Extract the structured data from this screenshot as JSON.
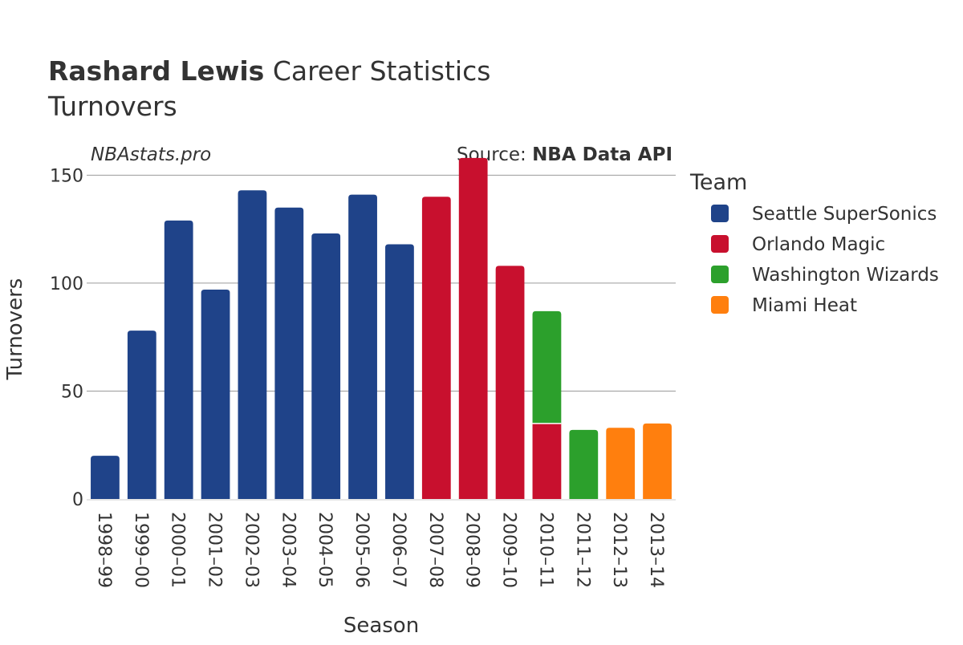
{
  "header": {
    "title_bold": "Rashard Lewis",
    "title_rest": " Career Statistics",
    "subtitle": "Turnovers",
    "watermark": "NBAstats.pro",
    "source_prefix": "Source: ",
    "source_bold": "NBA Data API"
  },
  "legend": {
    "title": "Team",
    "items": [
      {
        "name": "Seattle SuperSonics",
        "color": "#1f4389"
      },
      {
        "name": "Orlando Magic",
        "color": "#c8102e"
      },
      {
        "name": "Washington Wizards",
        "color": "#2ca02c"
      },
      {
        "name": "Miami Heat",
        "color": "#ff7f0e"
      }
    ]
  },
  "chart_data": {
    "type": "bar",
    "stacked": true,
    "title": "Rashard Lewis Career Statistics",
    "subtitle": "Turnovers",
    "xlabel": "Season",
    "ylabel": "Turnovers",
    "ylim": [
      0,
      165
    ],
    "yticks": [
      0,
      50,
      100,
      150
    ],
    "grid": true,
    "legend_position": "right",
    "categories": [
      "1998–99",
      "1999–00",
      "2000–01",
      "2001–02",
      "2002–03",
      "2003–04",
      "2004–05",
      "2005–06",
      "2006–07",
      "2007–08",
      "2008–09",
      "2009–10",
      "2010–11",
      "2011–12",
      "2012–13",
      "2013–14"
    ],
    "series": [
      {
        "name": "Seattle SuperSonics",
        "color": "#1f4389",
        "values": [
          20,
          78,
          129,
          97,
          143,
          135,
          123,
          141,
          118,
          0,
          0,
          0,
          0,
          0,
          0,
          0
        ]
      },
      {
        "name": "Orlando Magic",
        "color": "#c8102e",
        "values": [
          0,
          0,
          0,
          0,
          0,
          0,
          0,
          0,
          0,
          140,
          158,
          108,
          35,
          0,
          0,
          0
        ]
      },
      {
        "name": "Washington Wizards",
        "color": "#2ca02c",
        "values": [
          0,
          0,
          0,
          0,
          0,
          0,
          0,
          0,
          0,
          0,
          0,
          0,
          52,
          32,
          0,
          0
        ]
      },
      {
        "name": "Miami Heat",
        "color": "#ff7f0e",
        "values": [
          0,
          0,
          0,
          0,
          0,
          0,
          0,
          0,
          0,
          0,
          0,
          0,
          0,
          0,
          33,
          35
        ]
      }
    ]
  }
}
